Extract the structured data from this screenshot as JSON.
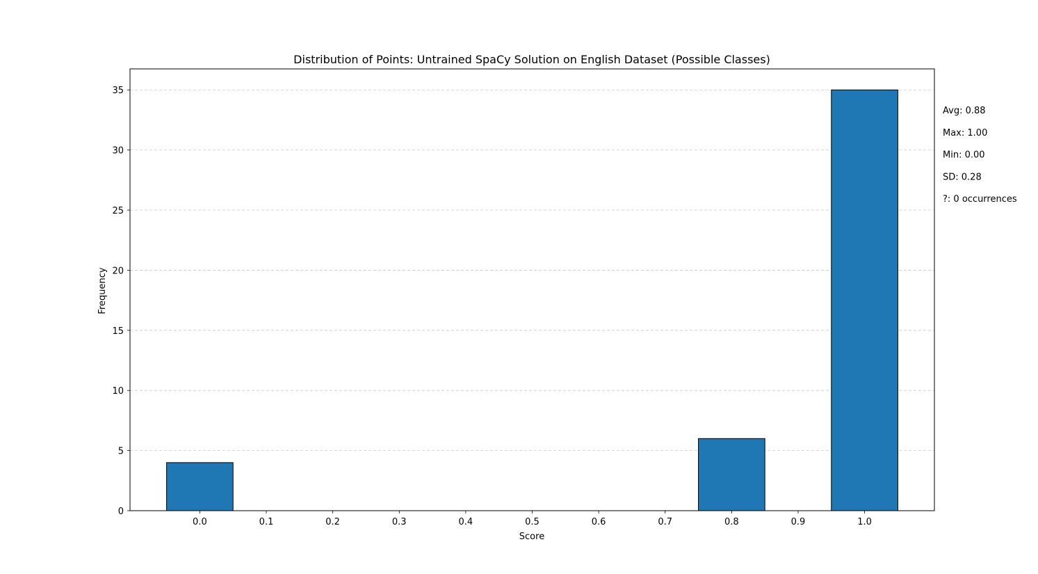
{
  "chart_data": {
    "type": "bar",
    "title": "Distribution of Points: Untrained SpaCy Solution on English Dataset (Possible Classes)",
    "xlabel": "Score",
    "ylabel": "Frequency",
    "x": [
      0.0,
      0.8,
      1.0
    ],
    "values": [
      4,
      6,
      35
    ],
    "bar_width": 0.1,
    "xticks": [
      "0.0",
      "0.1",
      "0.2",
      "0.3",
      "0.4",
      "0.5",
      "0.6",
      "0.7",
      "0.8",
      "0.9",
      "1.0"
    ],
    "xtick_values": [
      0.0,
      0.1,
      0.2,
      0.3,
      0.4,
      0.5,
      0.6,
      0.7,
      0.8,
      0.9,
      1.0
    ],
    "yticks": [
      0,
      5,
      10,
      15,
      20,
      25,
      30,
      35
    ],
    "xlim": [
      -0.105,
      1.105
    ],
    "ylim": [
      0,
      36.75
    ],
    "grid": "y-dashed",
    "bar_color": "#1f77b4",
    "edge_color": "#000000",
    "annotations": [
      "Avg: 0.88",
      "Max: 1.00",
      "Min: 0.00",
      "SD: 0.28",
      "?: 0 occurrences"
    ]
  }
}
